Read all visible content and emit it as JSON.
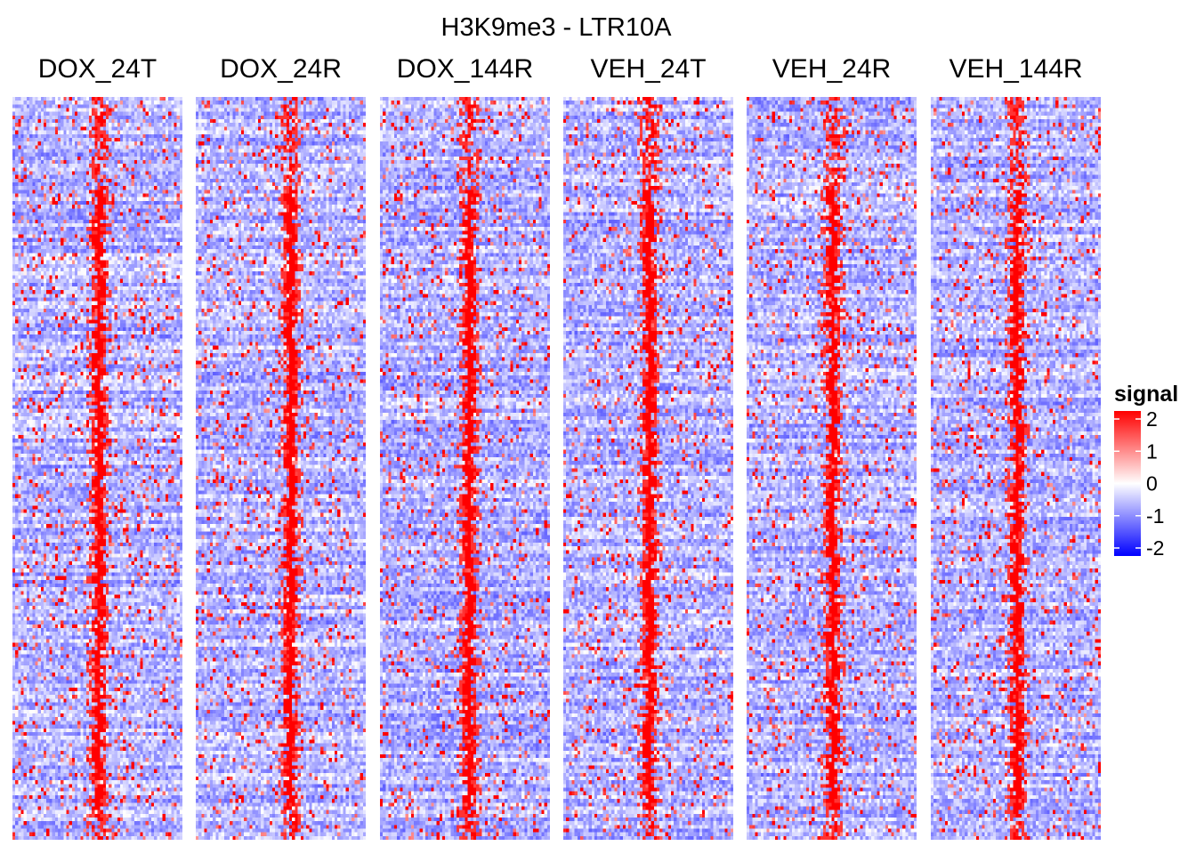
{
  "chart_data": {
    "type": "heatmap",
    "title": "H3K9me3 - LTR10A",
    "panels": [
      "DOX_24T",
      "DOX_24R",
      "DOX_144R",
      "VEH_24T",
      "VEH_24R",
      "VEH_144R"
    ],
    "rows": 200,
    "columns": 60,
    "value_range": [
      -2,
      2
    ],
    "colorscale": {
      "low": "#0000ff",
      "mid": "#ffffff",
      "high": "#ff0000"
    },
    "legend": {
      "title": "signal",
      "ticks": [
        2,
        1,
        0,
        -1,
        -2
      ],
      "tick_labels": [
        "2",
        "1",
        "0",
        "-1",
        "-2"
      ],
      "position": "right"
    },
    "signal_pattern": "enrichment concentrated in a central column band across rows, background mostly slightly negative"
  }
}
